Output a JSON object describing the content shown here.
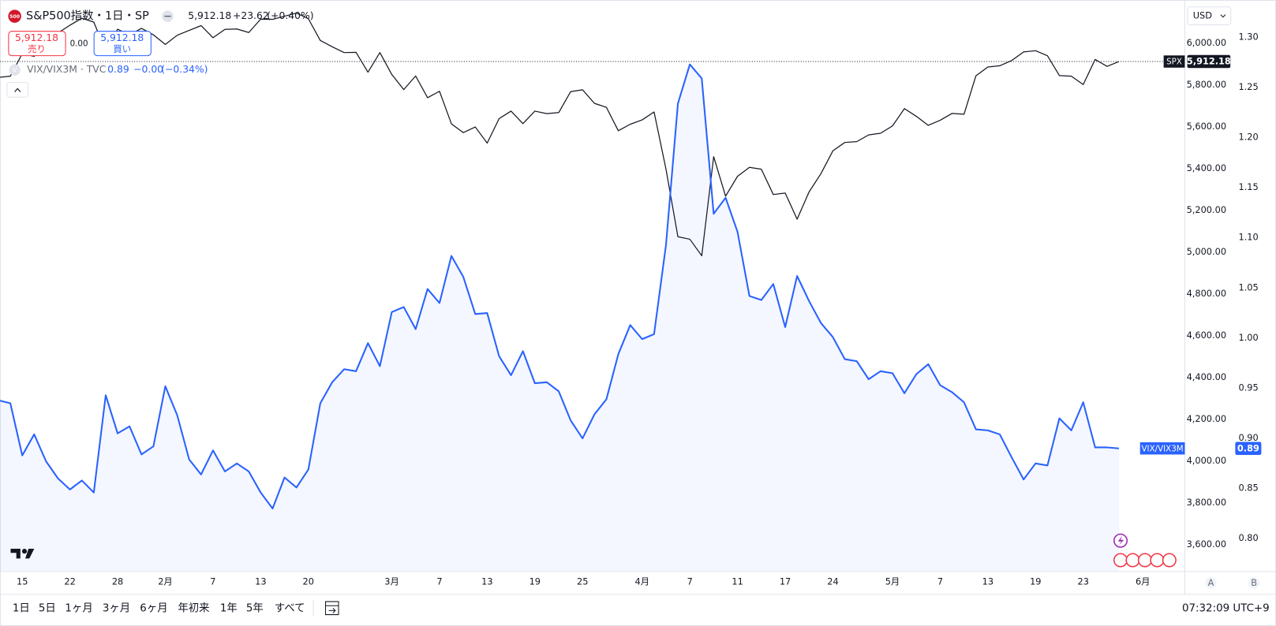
{
  "chart_data": {
    "type": "line",
    "categories": [
      null,
      null,
      "15",
      null,
      null,
      null,
      "22",
      null,
      null,
      null,
      "28",
      null,
      null,
      null,
      "2月",
      null,
      null,
      null,
      "7",
      null,
      null,
      null,
      "13",
      null,
      null,
      null,
      "20",
      null,
      null,
      null,
      null,
      null,
      null,
      "3月",
      null,
      null,
      null,
      "7",
      null,
      null,
      null,
      "13",
      null,
      null,
      null,
      "19",
      null,
      null,
      null,
      "25",
      null,
      null,
      null,
      null,
      "4月",
      null,
      null,
      null,
      "7",
      null,
      null,
      null,
      "11",
      null,
      null,
      null,
      "17",
      null,
      null,
      null,
      "24",
      null,
      null,
      null,
      null,
      "5月",
      null,
      null,
      null,
      "7",
      null,
      null,
      null,
      "13",
      null,
      null,
      null,
      "19",
      null,
      null,
      null,
      "23",
      null,
      null,
      null,
      null,
      "6月"
    ],
    "series": [
      {
        "name": "SPX",
        "color": "#131722",
        "values": [
          5836,
          5842,
          5950,
          5937,
          5997,
          6049,
          6086,
          6119,
          6101,
          5962,
          6067,
          6039,
          6071,
          6040,
          5994,
          6038,
          6061,
          6084,
          6026,
          6066,
          6068,
          6051,
          6115,
          6114,
          6129,
          6144,
          6117,
          6013,
          5983,
          5955,
          5956,
          5861,
          5955,
          5850,
          5778,
          5843,
          5739,
          5770,
          5614,
          5572,
          5599,
          5522,
          5639,
          5675,
          5615,
          5675,
          5663,
          5668,
          5768,
          5777,
          5712,
          5693,
          5581,
          5612,
          5633,
          5671,
          5397,
          5074,
          5062,
          4983,
          5457,
          5268,
          5363,
          5406,
          5397,
          5276,
          5283,
          5158,
          5288,
          5376,
          5485,
          5525,
          5529,
          5561,
          5569,
          5604,
          5687,
          5650,
          5607,
          5631,
          5664,
          5660,
          5844,
          5886,
          5892,
          5917,
          5958,
          5964,
          5940,
          5845,
          5842,
          5802,
          5922,
          5889,
          5912.18,
          null,
          null
        ]
      },
      {
        "name": "VIX/VIX3M",
        "color": "#2962ff",
        "axis": "y2",
        "area": true,
        "values": [
          0.938,
          0.935,
          0.883,
          0.904,
          0.877,
          0.86,
          0.849,
          0.858,
          0.846,
          0.943,
          0.905,
          0.912,
          0.884,
          0.892,
          0.952,
          0.923,
          0.879,
          0.864,
          0.888,
          0.867,
          0.875,
          0.867,
          0.846,
          0.83,
          0.861,
          0.851,
          0.869,
          0.935,
          0.956,
          0.969,
          0.967,
          0.995,
          0.972,
          1.026,
          1.031,
          1.009,
          1.049,
          1.035,
          1.082,
          1.061,
          1.024,
          1.025,
          0.982,
          0.963,
          0.987,
          0.955,
          0.956,
          0.947,
          0.918,
          0.9,
          0.924,
          0.939,
          0.984,
          1.013,
          0.999,
          1.004,
          1.093,
          1.234,
          1.273,
          1.259,
          1.124,
          1.14,
          1.106,
          1.042,
          1.038,
          1.054,
          1.011,
          1.062,
          1.037,
          1.015,
          1.001,
          0.979,
          0.977,
          0.959,
          0.967,
          0.965,
          0.945,
          0.964,
          0.974,
          0.953,
          0.946,
          0.936,
          0.909,
          0.908,
          0.904,
          0.881,
          0.859,
          0.875,
          0.873,
          0.92,
          0.908,
          0.936,
          0.891,
          0.891,
          0.89,
          null,
          null
        ]
      }
    ],
    "ylim": [
      3476,
      6191
    ],
    "yticks": [
      {
        "value": 3600,
        "label": "3,600.00"
      },
      {
        "value": 3800,
        "label": "3,800.00"
      },
      {
        "value": 4000,
        "label": "4,000.00"
      },
      {
        "value": 4200,
        "label": "4,200.00"
      },
      {
        "value": 4400,
        "label": "4,400.00"
      },
      {
        "value": 4600,
        "label": "4,600.00"
      },
      {
        "value": 4800,
        "label": "4,800.00"
      },
      {
        "value": 5000,
        "label": "5,000.00"
      },
      {
        "value": 5200,
        "label": "5,200.00"
      },
      {
        "value": 5400,
        "label": "5,400.00"
      },
      {
        "value": 5600,
        "label": "5,600.00"
      },
      {
        "value": 5800,
        "label": "5,800.00"
      },
      {
        "value": 6000,
        "label": "6,000.00"
      }
    ],
    "y2lim": [
      0.768,
      1.334
    ],
    "y2ticks": [
      {
        "value": 0.8,
        "label": "0.80"
      },
      {
        "value": 0.85,
        "label": "0.85"
      },
      {
        "value": 0.9,
        "label": "0.90"
      },
      {
        "value": 0.95,
        "label": "0.95"
      },
      {
        "value": 1,
        "label": "1.00"
      },
      {
        "value": 1.05,
        "label": "1.05"
      },
      {
        "value": 1.1,
        "label": "1.10"
      },
      {
        "value": 1.15,
        "label": "1.15"
      },
      {
        "value": 1.2,
        "label": "1.20"
      },
      {
        "value": 1.25,
        "label": "1.25"
      },
      {
        "value": 1.3,
        "label": "1.30"
      }
    ],
    "grid": false,
    "last_value_labels": [
      "5,912.18",
      "0.89"
    ]
  },
  "legend": {
    "main": {
      "icon": "500",
      "title": "S&P500指数・1日・SP",
      "last": "5,912.18",
      "change": "+23.62",
      "change_pct": "(+0.40%)"
    },
    "trade": {
      "sell_price": "5,912.18",
      "sell_label": "売り",
      "spread": "0.00",
      "buy_price": "5,912.18",
      "buy_label": "買い"
    },
    "overlay": {
      "icon": "V",
      "title": "VIX/VIX3M · TVC",
      "last": "0.89",
      "change": "−0.00",
      "change_pct": "(−0.34%)"
    }
  },
  "currency": "USD",
  "scale_buttons": [
    "A",
    "B"
  ],
  "ranges": [
    "1日",
    "5日",
    "1ヶ月",
    "3ヶ月",
    "6ヶ月",
    "年初来",
    "1年",
    "5年",
    "すべて"
  ],
  "clock": "07:32:09 UTC+9"
}
